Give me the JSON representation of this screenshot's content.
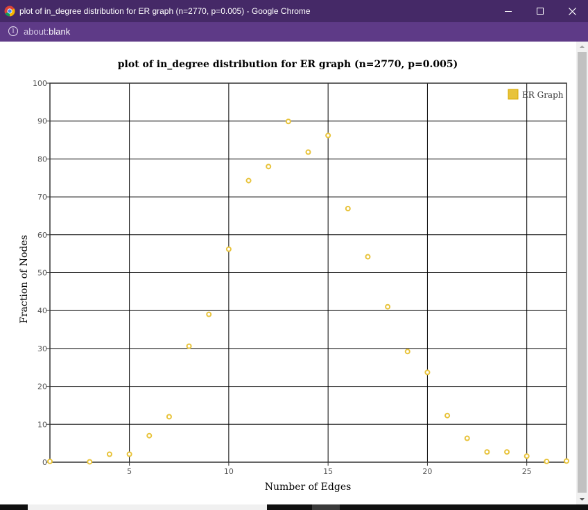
{
  "window": {
    "title": "plot of in_degree distribution for ER graph (n=2770, p=0.005) - Google Chrome",
    "minimize_glyph": "—",
    "maximize_glyph": "☐",
    "close_glyph": "✕",
    "icons": {
      "app": "chrome-icon",
      "minimize": "minimize-icon",
      "maximize": "maximize-icon",
      "close": "close-icon"
    }
  },
  "address_bar": {
    "info_glyph": "i",
    "scheme": "about:",
    "host": "blank"
  },
  "colors": {
    "titlebar": "#452967",
    "addressbar": "#5e3a87",
    "series": "#e8c33a",
    "grid": "#000000"
  },
  "chart_data": {
    "type": "scatter",
    "title": "plot of in_degree distribution for ER graph (n=2770, p=0.005)",
    "xlabel": "Number of Edges",
    "ylabel": "Fraction of Nodes",
    "xlim": [
      1,
      27
    ],
    "ylim": [
      0,
      100
    ],
    "x_ticks": [
      5,
      10,
      15,
      20,
      25
    ],
    "y_ticks": [
      0,
      10,
      20,
      30,
      40,
      50,
      60,
      70,
      80,
      90,
      100
    ],
    "grid": true,
    "legend_position": "top-right",
    "series": [
      {
        "name": "ER Graph",
        "color": "#e8c33a",
        "points": [
          {
            "x": 1,
            "y": 0.2
          },
          {
            "x": 3,
            "y": 0.1
          },
          {
            "x": 4,
            "y": 2.1
          },
          {
            "x": 5,
            "y": 2.1
          },
          {
            "x": 6,
            "y": 7.0
          },
          {
            "x": 7,
            "y": 12.0
          },
          {
            "x": 8,
            "y": 30.6
          },
          {
            "x": 9,
            "y": 39.0
          },
          {
            "x": 10,
            "y": 56.2
          },
          {
            "x": 11,
            "y": 74.3
          },
          {
            "x": 12,
            "y": 78.0
          },
          {
            "x": 13,
            "y": 89.9
          },
          {
            "x": 14,
            "y": 81.8
          },
          {
            "x": 15,
            "y": 86.2
          },
          {
            "x": 16,
            "y": 66.9
          },
          {
            "x": 17,
            "y": 54.2
          },
          {
            "x": 18,
            "y": 41.0
          },
          {
            "x": 19,
            "y": 29.2
          },
          {
            "x": 20,
            "y": 23.7
          },
          {
            "x": 21,
            "y": 12.3
          },
          {
            "x": 22,
            "y": 6.3
          },
          {
            "x": 23,
            "y": 2.7
          },
          {
            "x": 24,
            "y": 2.7
          },
          {
            "x": 25,
            "y": 1.6
          },
          {
            "x": 26,
            "y": 0.2
          },
          {
            "x": 27,
            "y": 0.3
          }
        ]
      }
    ]
  }
}
